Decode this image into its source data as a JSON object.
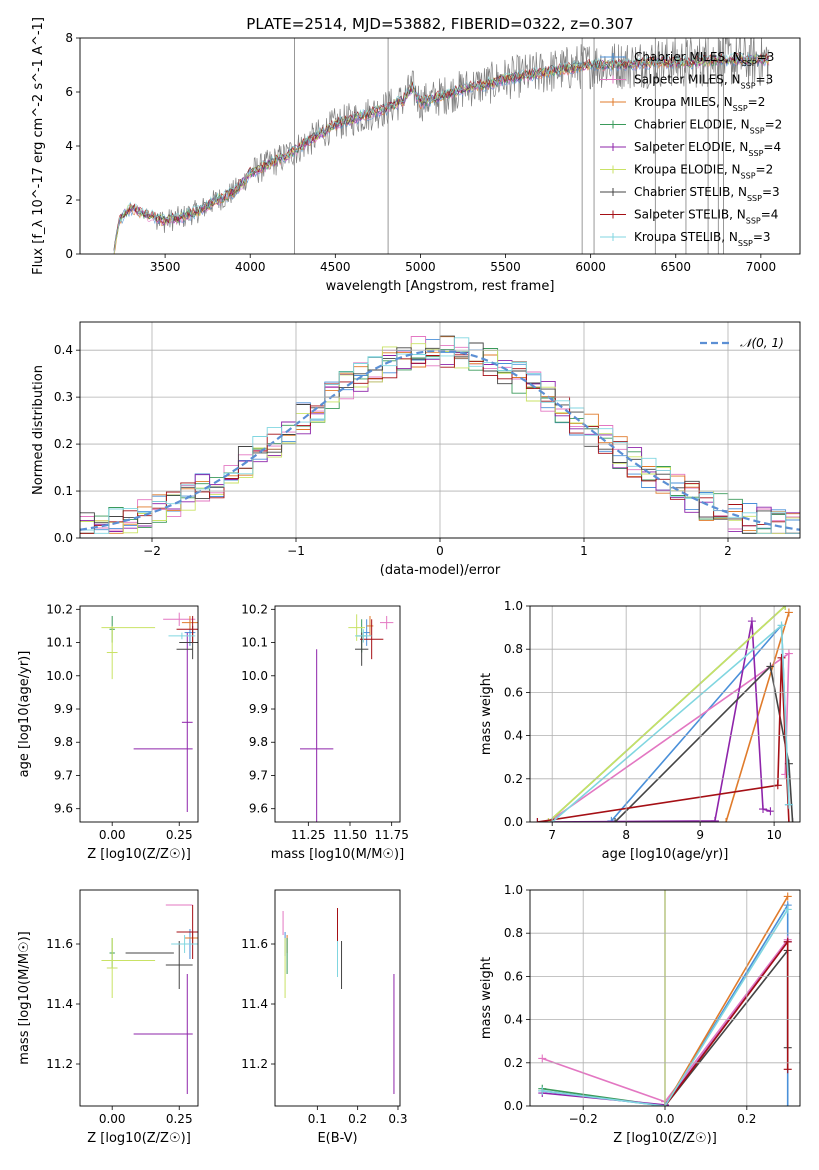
{
  "figure_title": "PLATE=2514, MJD=53882, FIBERID=0322, z=0.307",
  "colors": {
    "Chabrier MILES": "#4a90d9",
    "Salpeter MILES": "#e377c2",
    "Kroupa MILES": "#e07b2b",
    "Chabrier ELODIE": "#3a9a5a",
    "Salpeter ELODIE": "#8e24aa",
    "Kroupa ELODIE": "#c9e265",
    "Chabrier STELIB": "#444444",
    "Salpeter STELIB": "#a50f15",
    "Kroupa STELIB": "#80d6e0",
    "data": "#7f7f7f",
    "gauss": "#5b8fd4"
  },
  "chart_data": [
    {
      "id": "spectrum",
      "type": "line",
      "xlabel": "wavelength [Angstrom, rest frame]",
      "ylabel": "Flux [f_λ 10^-17 erg cm^-2 s^-1 A^-1]",
      "xlim": [
        3000,
        7230
      ],
      "ylim": [
        0,
        8
      ],
      "xticks": [
        3500,
        4000,
        4500,
        5000,
        5500,
        6000,
        6500,
        7000
      ],
      "yticks": [
        0,
        2,
        4,
        6,
        8
      ],
      "grid": false,
      "legend_position": "top-right",
      "continuum": {
        "x": [
          3200,
          3230,
          3260,
          3300,
          3350,
          3400,
          3450,
          3500,
          3550,
          3600,
          3650,
          3700,
          3750,
          3800,
          3850,
          3900,
          3950,
          4000,
          4100,
          4200,
          4300,
          4400,
          4500,
          4600,
          4700,
          4800,
          4900,
          4950,
          5000,
          5100,
          5200,
          5300,
          5400,
          5500,
          5600,
          5700,
          5800,
          5900,
          6000,
          6200,
          6400,
          6600,
          6800,
          7000,
          7050
        ],
        "y": [
          0.1,
          1.2,
          1.5,
          1.7,
          1.55,
          1.45,
          1.35,
          1.2,
          1.3,
          1.35,
          1.5,
          1.6,
          1.8,
          2.0,
          2.1,
          2.3,
          2.6,
          3.0,
          3.3,
          3.6,
          4.0,
          4.4,
          4.8,
          5.0,
          5.2,
          5.4,
          5.7,
          6.2,
          5.6,
          5.8,
          6.0,
          6.2,
          6.3,
          6.5,
          6.6,
          6.7,
          6.8,
          6.9,
          7.0,
          7.0,
          7.1,
          7.1,
          7.2,
          7.2,
          7.2
        ]
      },
      "series": [
        {
          "name": "Chabrier MILES",
          "n_ssp": "3"
        },
        {
          "name": "Salpeter MILES",
          "n_ssp": "3"
        },
        {
          "name": "Kroupa MILES",
          "n_ssp": "2"
        },
        {
          "name": "Chabrier ELODIE",
          "n_ssp": "2"
        },
        {
          "name": "Salpeter ELODIE",
          "n_ssp": "4"
        },
        {
          "name": "Kroupa ELODIE",
          "n_ssp": "2"
        },
        {
          "name": "Chabrier STELIB",
          "n_ssp": "3"
        },
        {
          "name": "Salpeter STELIB",
          "n_ssp": "4"
        },
        {
          "name": "Kroupa STELIB",
          "n_ssp": "3"
        }
      ]
    },
    {
      "id": "residuals",
      "type": "step",
      "xlabel": "(data-model)/error",
      "ylabel": "Normed distribution",
      "xlim": [
        -2.5,
        2.5
      ],
      "ylim": [
        0,
        0.46
      ],
      "xticks": [
        -2,
        -1,
        0,
        1,
        2
      ],
      "yticks": [
        0.0,
        0.1,
        0.2,
        0.3,
        0.4
      ],
      "grid": true,
      "legend": "𝒩(0, 1)",
      "legend_position": "top-right",
      "bin_width": 0.1
    },
    {
      "id": "age_vs_Z",
      "type": "errorbar",
      "xlabel": "Z [log10(Z/Z☉)]",
      "ylabel": "age [log10(age/yr)]",
      "xlim": [
        -0.12,
        0.32
      ],
      "ylim": [
        9.56,
        10.21
      ],
      "xticks": [
        0.0,
        0.25
      ],
      "yticks": [
        9.6,
        9.7,
        9.8,
        9.9,
        10.0,
        10.1,
        10.2
      ],
      "points": [
        {
          "s": "Chabrier MILES",
          "x": 0.29,
          "xe": 0.02,
          "y": 10.13,
          "ye": 0.04
        },
        {
          "s": "Salpeter MILES",
          "x": 0.25,
          "xe": 0.06,
          "y": 10.17,
          "ye": 0.02
        },
        {
          "s": "Kroupa MILES",
          "x": 0.29,
          "xe": 0.03,
          "y": 10.16,
          "ye": 0.02
        },
        {
          "s": "Chabrier ELODIE",
          "x": 0.0,
          "xe": 0.01,
          "y": 10.14,
          "ye": 0.04
        },
        {
          "s": "Salpeter ELODIE",
          "x": 0.28,
          "xe": 0.02,
          "y": 9.86,
          "ye": 0.27
        },
        {
          "s": "Salpeter ELODIE",
          "x": 0.19,
          "xe": 0.11,
          "y": 9.78,
          "ye": 0.0
        },
        {
          "s": "Kroupa ELODIE",
          "x": 0.0,
          "xe": 0.02,
          "y": 10.07,
          "ye": 0.08
        },
        {
          "s": "Kroupa ELODIE",
          "x": 0.06,
          "xe": 0.1,
          "y": 10.145,
          "ye": 0.0
        },
        {
          "s": "Chabrier STELIB",
          "x": 0.3,
          "xe": 0.05,
          "y": 10.1,
          "ye": 0.05
        },
        {
          "s": "Chabrier STELIB",
          "x": 0.27,
          "xe": 0.03,
          "y": 10.08,
          "ye": 0.0
        },
        {
          "s": "Salpeter STELIB",
          "x": 0.3,
          "xe": 0.06,
          "y": 10.14,
          "ye": 0.04
        },
        {
          "s": "Kroupa STELIB",
          "x": 0.26,
          "xe": 0.05,
          "y": 10.12,
          "ye": 0.01
        }
      ]
    },
    {
      "id": "age_vs_mass",
      "type": "errorbar",
      "xlabel": "mass [log10(M/M☉)]",
      "ylabel": "",
      "xlim": [
        11.05,
        11.8
      ],
      "ylim": [
        9.56,
        10.21
      ],
      "xticks": [
        11.25,
        11.5,
        11.75
      ],
      "yticks": [
        9.6,
        9.7,
        9.8,
        9.9,
        10.0,
        10.1,
        10.2
      ],
      "points": [
        {
          "s": "Chabrier MILES",
          "x": 11.6,
          "xe": 0.02,
          "y": 10.13,
          "ye": 0.04
        },
        {
          "s": "Salpeter MILES",
          "x": 11.72,
          "xe": 0.04,
          "y": 10.16,
          "ye": 0.02
        },
        {
          "s": "Kroupa MILES",
          "x": 11.62,
          "xe": 0.02,
          "y": 10.15,
          "ye": 0.03
        },
        {
          "s": "Chabrier ELODIE",
          "x": 11.57,
          "xe": 0.03,
          "y": 10.12,
          "ye": 0.05
        },
        {
          "s": "Salpeter ELODIE",
          "x": 11.3,
          "xe": 0.1,
          "y": 9.78,
          "ye": 0.3
        },
        {
          "s": "Kroupa ELODIE",
          "x": 11.54,
          "xe": 0.05,
          "y": 10.145,
          "ye": 0.04
        },
        {
          "s": "Chabrier STELIB",
          "x": 11.57,
          "xe": 0.04,
          "y": 10.08,
          "ye": 0.05
        },
        {
          "s": "Salpeter STELIB",
          "x": 11.63,
          "xe": 0.07,
          "y": 10.11,
          "ye": 0.06
        },
        {
          "s": "Kroupa STELIB",
          "x": 11.58,
          "xe": 0.05,
          "y": 10.12,
          "ye": 0.02
        }
      ]
    },
    {
      "id": "weight_vs_age",
      "type": "line",
      "xlabel": "age [log10(age/yr)]",
      "ylabel": "mass weight",
      "xlim": [
        6.7,
        10.35
      ],
      "ylim": [
        0,
        1
      ],
      "xticks": [
        7,
        8,
        9,
        10
      ],
      "yticks": [
        0.0,
        0.2,
        0.4,
        0.6,
        0.8,
        1.0
      ],
      "grid": true,
      "series": [
        {
          "name": "Chabrier MILES",
          "x": [
            7.8,
            10.1,
            10.2
          ],
          "y": [
            0.005,
            0.91,
            0.08
          ]
        },
        {
          "name": "Salpeter MILES",
          "x": [
            6.95,
            10.2,
            10.15
          ],
          "y": [
            0.0,
            0.78,
            0.22
          ]
        },
        {
          "name": "Kroupa MILES",
          "x": [
            9.35,
            10.2
          ],
          "y": [
            0.0,
            0.97
          ]
        },
        {
          "name": "Chabrier ELODIE",
          "x": [
            6.95,
            10.15
          ],
          "y": [
            0.0,
            1.0
          ]
        },
        {
          "name": "Salpeter ELODIE",
          "x": [
            6.8,
            9.2,
            9.7,
            9.85,
            9.95
          ],
          "y": [
            0.0,
            0.005,
            0.93,
            0.06,
            0.05
          ]
        },
        {
          "name": "Kroupa ELODIE",
          "x": [
            6.95,
            10.15
          ],
          "y": [
            0.0,
            1.0
          ]
        },
        {
          "name": "Chabrier STELIB",
          "x": [
            7.85,
            9.95,
            10.2,
            10.25
          ],
          "y": [
            0.0,
            0.72,
            0.27,
            0.0
          ]
        },
        {
          "name": "Salpeter STELIB",
          "x": [
            6.8,
            10.05,
            10.1,
            10.2
          ],
          "y": [
            0.0,
            0.17,
            0.76,
            0.0
          ]
        },
        {
          "name": "Kroupa STELIB",
          "x": [
            7.0,
            10.1,
            10.2
          ],
          "y": [
            0.0,
            0.91,
            0.08
          ]
        }
      ]
    },
    {
      "id": "mass_vs_Z",
      "type": "errorbar",
      "xlabel": "Z [log10(Z/Z☉)]",
      "ylabel": "mass [log10(M/M☉)]",
      "xlim": [
        -0.12,
        0.32
      ],
      "ylim": [
        11.06,
        11.78
      ],
      "xticks": [
        0.0,
        0.25
      ],
      "yticks": [
        11.2,
        11.4,
        11.6
      ],
      "points": [
        {
          "s": "Chabrier MILES",
          "x": 0.29,
          "xe": 0.02,
          "y": 11.6,
          "ye": 0.05
        },
        {
          "s": "Salpeter MILES",
          "x": 0.25,
          "xe": 0.05,
          "y": 11.73,
          "ye": 0.0
        },
        {
          "s": "Kroupa MILES",
          "x": 0.3,
          "xe": 0.03,
          "y": 11.62,
          "ye": 0.02
        },
        {
          "s": "Chabrier ELODIE",
          "x": 0.0,
          "xe": 0.01,
          "y": 11.57,
          "ye": 0.05
        },
        {
          "s": "Salpeter ELODIE",
          "x": 0.28,
          "xe": 0.02,
          "y": 11.3,
          "ye": 0.2
        },
        {
          "s": "Salpeter ELODIE",
          "x": 0.19,
          "xe": 0.11,
          "y": 11.3,
          "ye": 0.0
        },
        {
          "s": "Kroupa ELODIE",
          "x": 0.0,
          "xe": 0.02,
          "y": 11.52,
          "ye": 0.1
        },
        {
          "s": "Kroupa ELODIE",
          "x": 0.06,
          "xe": 0.1,
          "y": 11.545,
          "ye": 0.0
        },
        {
          "s": "Chabrier STELIB",
          "x": 0.25,
          "xe": 0.05,
          "y": 11.53,
          "ye": 0.08
        },
        {
          "s": "Chabrier STELIB",
          "x": 0.14,
          "xe": 0.09,
          "y": 11.57,
          "ye": 0.0
        },
        {
          "s": "Salpeter STELIB",
          "x": 0.3,
          "xe": 0.06,
          "y": 11.64,
          "ye": 0.09
        },
        {
          "s": "Kroupa STELIB",
          "x": 0.27,
          "xe": 0.05,
          "y": 11.6,
          "ye": 0.03
        }
      ]
    },
    {
      "id": "mass_vs_EBV",
      "type": "errorbar",
      "xlabel": "E(B-V)",
      "ylabel": "",
      "xlim": [
        -0.005,
        0.305
      ],
      "ylim": [
        11.06,
        11.78
      ],
      "xticks": [
        0.1,
        0.2,
        0.3
      ],
      "yticks": [
        11.2,
        11.4,
        11.6
      ],
      "points": [
        {
          "s": "Salpeter MILES",
          "x": 0.015,
          "xe": 0.0,
          "y": 11.67,
          "ye": 0.04
        },
        {
          "s": "Kroupa MILES",
          "x": 0.025,
          "xe": 0.0,
          "y": 11.6,
          "ye": 0.03
        },
        {
          "s": "Chabrier MILES",
          "x": 0.02,
          "xe": 0.0,
          "y": 11.6,
          "ye": 0.04
        },
        {
          "s": "Chabrier ELODIE",
          "x": 0.025,
          "xe": 0.0,
          "y": 11.56,
          "ye": 0.06
        },
        {
          "s": "Kroupa ELODIE",
          "x": 0.02,
          "xe": 0.0,
          "y": 11.52,
          "ye": 0.1
        },
        {
          "s": "Salpeter STELIB",
          "x": 0.15,
          "xe": 0.0,
          "y": 11.66,
          "ye": 0.06
        },
        {
          "s": "Chabrier STELIB",
          "x": 0.16,
          "xe": 0.0,
          "y": 11.53,
          "ye": 0.08
        },
        {
          "s": "Kroupa STELIB",
          "x": 0.15,
          "xe": 0.0,
          "y": 11.55,
          "ye": 0.06
        },
        {
          "s": "Salpeter ELODIE",
          "x": 0.29,
          "xe": 0.0,
          "y": 11.3,
          "ye": 0.2
        }
      ]
    },
    {
      "id": "weight_vs_Z",
      "type": "line",
      "xlabel": "Z [log10(Z/Z☉)]",
      "ylabel": "mass weight",
      "xlim": [
        -0.33,
        0.33
      ],
      "ylim": [
        0,
        1
      ],
      "xticks": [
        -0.2,
        0.0,
        0.2
      ],
      "yticks": [
        0.0,
        0.2,
        0.4,
        0.6,
        0.8,
        1.0
      ],
      "grid": true,
      "series": [
        {
          "name": "Chabrier MILES",
          "x": [
            -0.3,
            0.0,
            0.3,
            0.3
          ],
          "y": [
            0.07,
            0.0,
            0.93,
            0.0
          ]
        },
        {
          "name": "Salpeter MILES",
          "x": [
            -0.3,
            0.0,
            0.3
          ],
          "y": [
            0.22,
            0.02,
            0.77
          ]
        },
        {
          "name": "Kroupa MILES",
          "x": [
            0.0,
            0.3
          ],
          "y": [
            0.0,
            0.97
          ]
        },
        {
          "name": "Chabrier ELODIE",
          "x": [
            -0.3,
            0.0
          ],
          "y": [
            0.08,
            0.0
          ]
        },
        {
          "name": "Salpeter ELODIE",
          "x": [
            -0.3,
            0.0,
            0.3
          ],
          "y": [
            0.06,
            0.005,
            0.76
          ]
        },
        {
          "name": "Kroupa ELODIE",
          "x": [
            0.0,
            0.0,
            0.0
          ],
          "y": [
            0.0,
            1.0,
            0.0
          ]
        },
        {
          "name": "Chabrier STELIB",
          "x": [
            0.0,
            0.3,
            0.3
          ],
          "y": [
            0.0,
            0.72,
            0.27
          ]
        },
        {
          "name": "Salpeter STELIB",
          "x": [
            0.0,
            0.3,
            0.3
          ],
          "y": [
            0.0,
            0.76,
            0.17
          ]
        },
        {
          "name": "Kroupa STELIB",
          "x": [
            -0.3,
            0.0,
            0.3
          ],
          "y": [
            0.07,
            0.0,
            0.91
          ]
        }
      ]
    }
  ]
}
